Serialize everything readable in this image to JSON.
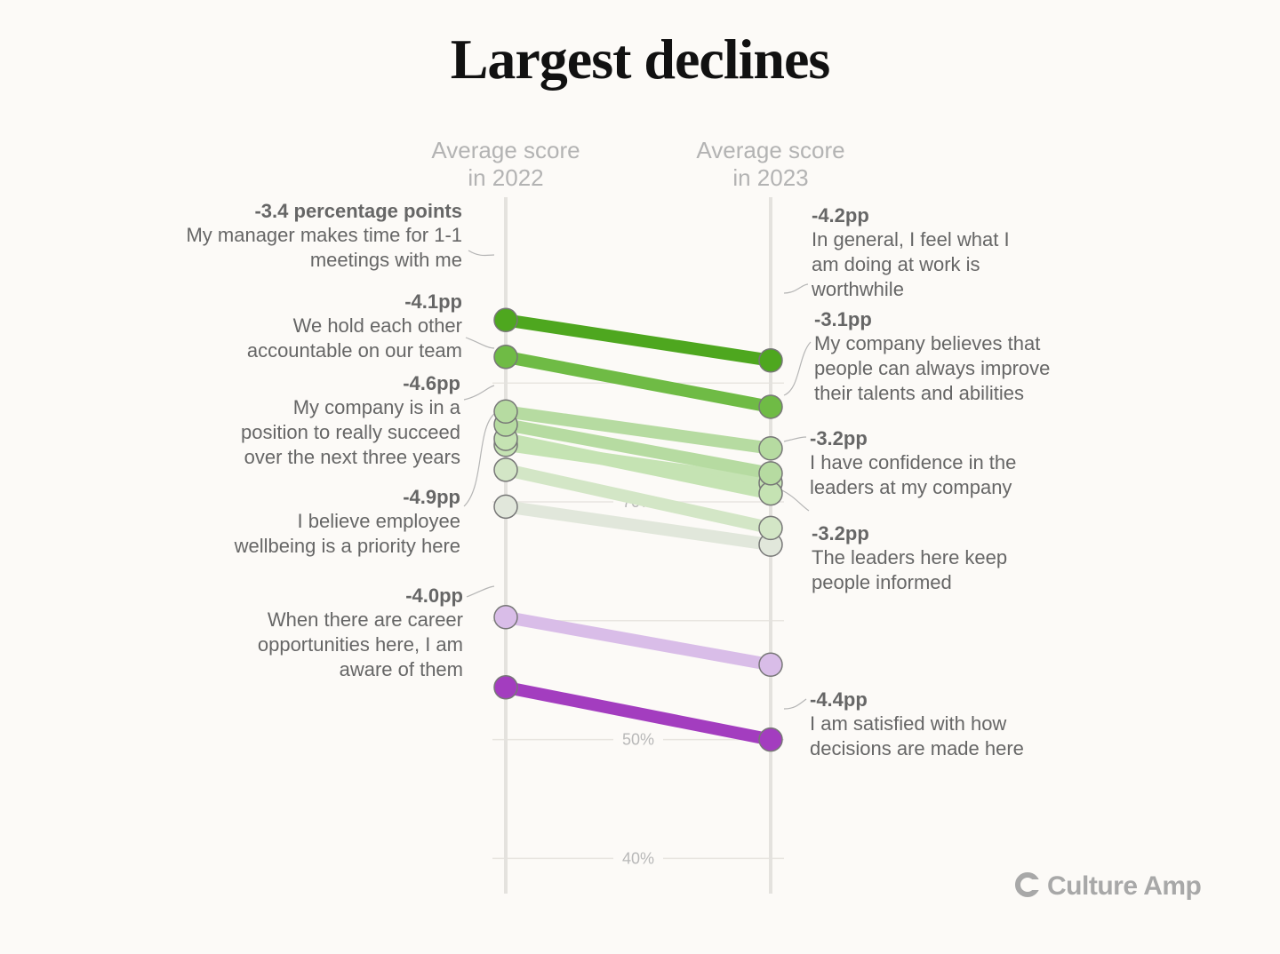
{
  "chart_data": {
    "type": "slope",
    "title": "Largest declines",
    "columns": [
      "Average score\nin 2022",
      "Average score\nin 2023"
    ],
    "yaxis": {
      "ticks": [
        70,
        50,
        40
      ],
      "tick_labels": [
        "70%",
        "50%",
        "40%"
      ],
      "ylim": [
        37,
        87
      ]
    },
    "grid": true,
    "series": [
      {
        "label": "My manager makes time for 1-1 meetings with me",
        "delta": "-3.4 percentage points",
        "values": [
          85.3,
          81.9
        ],
        "color": "#4ea71f"
      },
      {
        "label": "In general, I feel what I am doing at work is worthwhile",
        "delta": "-4.2pp",
        "values": [
          82.2,
          78.0
        ],
        "color": "#6fbb45"
      },
      {
        "label": "My company believes that people can always improve their talents and abilities",
        "delta": "-3.1pp",
        "values": [
          77.6,
          74.5
        ],
        "color": "#b6dba1"
      },
      {
        "label": "We hold each other accountable on our team",
        "delta": "-4.1pp",
        "values": [
          76.5,
          72.4
        ],
        "color": "#b6dba1"
      },
      {
        "label": "My company is in a position to really succeed over the next three years",
        "delta": "-4.6pp",
        "values": [
          75.3,
          70.7
        ],
        "color": "#c5e3b3"
      },
      {
        "label": "I have confidence in the leaders at my company",
        "delta": "-3.2pp",
        "values": [
          74.8,
          71.6
        ],
        "color": "#c5e3b3"
      },
      {
        "label": "I believe employee wellbeing is a priority here",
        "delta": "-4.9pp",
        "values": [
          72.7,
          67.8
        ],
        "color": "#d3e6c6"
      },
      {
        "label": "The leaders here keep people informed",
        "delta": "-3.2pp",
        "values": [
          69.6,
          66.4
        ],
        "color": "#e1e7db"
      },
      {
        "label": "When there are career opportunities here, I am aware of them",
        "delta": "-4.0pp",
        "values": [
          60.3,
          56.3
        ],
        "color": "#d9bde8"
      },
      {
        "label": "I am satisfied with how decisions are made here",
        "delta": "-4.4pp",
        "values": [
          54.4,
          50.0
        ],
        "color": "#a33dbf"
      }
    ],
    "annotations": [
      {
        "delta": "-3.4 percentage points",
        "text": [
          "My manager makes time for 1-1",
          "meetings with me"
        ]
      },
      {
        "delta": "-4.1pp",
        "text": [
          "We hold each other",
          "accountable on our team"
        ]
      },
      {
        "delta": "-4.6pp",
        "text": [
          "My company is in a",
          "position to really succeed",
          "over the next three years"
        ]
      },
      {
        "delta": "-4.9pp",
        "text": [
          "I believe employee",
          "wellbeing is a priority here"
        ]
      },
      {
        "delta": "-4.0pp",
        "text": [
          "When there are career",
          "opportunities here, I am",
          "aware of them"
        ]
      },
      {
        "delta": "-4.2pp",
        "text": [
          "In general, I feel what I",
          "am doing at work is",
          "worthwhile"
        ]
      },
      {
        "delta": "-3.1pp",
        "text": [
          "My company believes that",
          "people can always improve",
          "their talents and abilities"
        ]
      },
      {
        "delta": "-3.2pp",
        "text": [
          "I have confidence in the",
          "leaders at my company"
        ]
      },
      {
        "delta": "-3.2pp",
        "text": [
          "The leaders here keep",
          "people informed"
        ]
      },
      {
        "delta": "-4.4pp",
        "text": [
          "I am satisfied with how",
          "decisions are made here"
        ]
      }
    ]
  },
  "brand": {
    "name": "Culture Amp"
  }
}
